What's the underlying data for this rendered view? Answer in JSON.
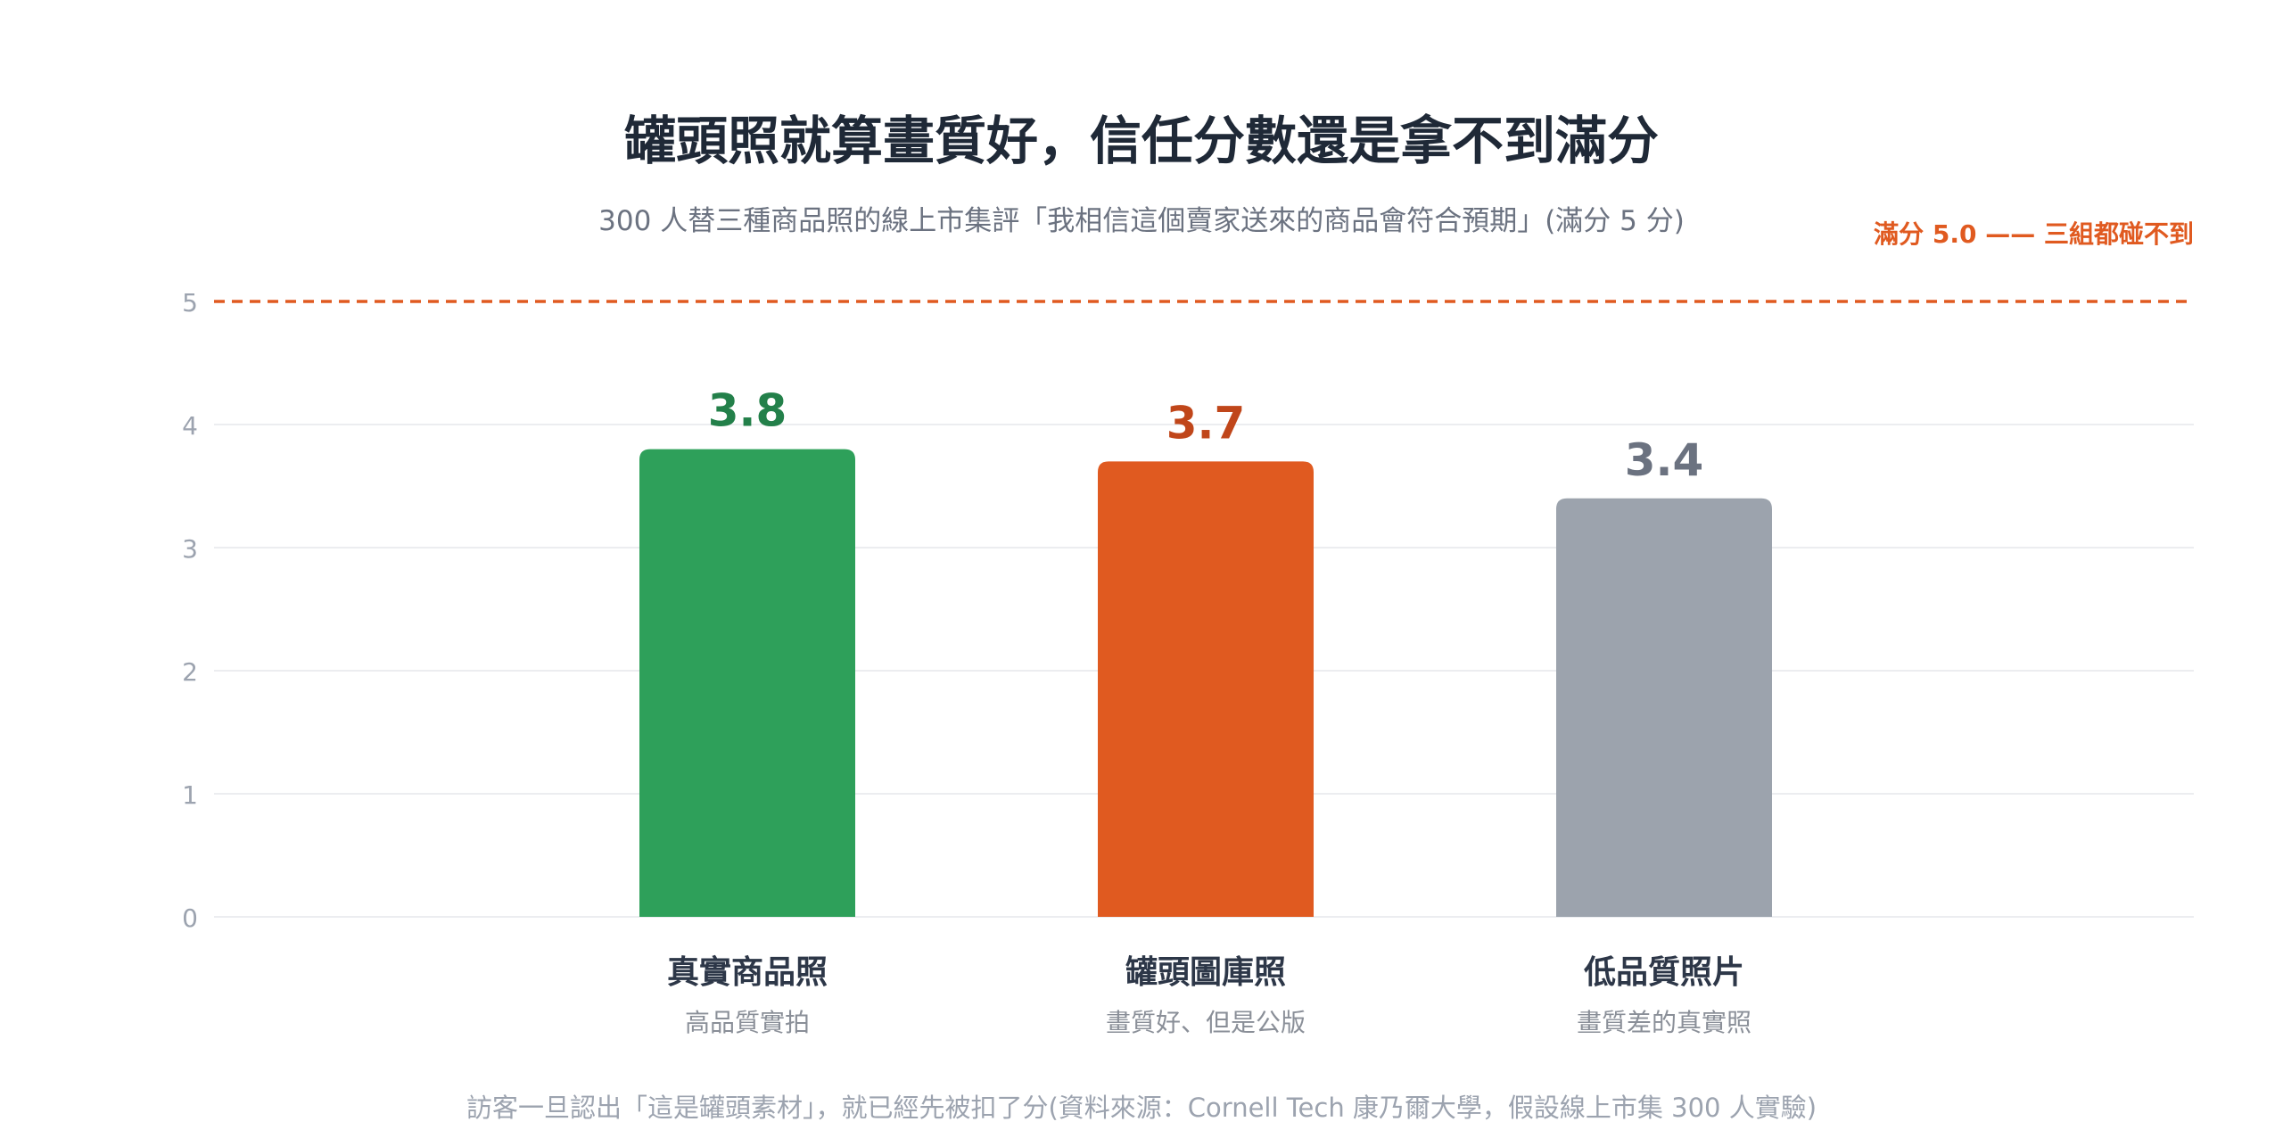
{
  "chart_data": {
    "type": "bar",
    "title": "罐頭照就算畫質好，信任分數還是拿不到滿分",
    "subtitle": "300 人替三種商品照的線上市集評「我相信這個賣家送來的商品會符合預期」(滿分 5 分)",
    "reference_line": {
      "value": 5.0,
      "label": "滿分 5.0 —— 三組都碰不到"
    },
    "ylim": [
      0,
      5
    ],
    "yticks": [
      0,
      1,
      2,
      3,
      4,
      5
    ],
    "grid": true,
    "categories": [
      "真實商品照",
      "罐頭圖庫照",
      "低品質照片"
    ],
    "category_sublabels": [
      "高品質實拍",
      "畫質好、但是公版",
      "畫質差的真實照"
    ],
    "values": [
      3.8,
      3.7,
      3.4
    ],
    "value_labels": [
      "3.8",
      "3.7",
      "3.4"
    ],
    "colors": {
      "bars": [
        "#2ea05a",
        "#e05a20",
        "#9ca3ad"
      ],
      "value_labels": [
        "#23804a",
        "#c0461a",
        "#6b7280"
      ],
      "reference": "#e05a20",
      "title": "#1f2937",
      "subtitle": "#6b7280",
      "category": "#2d3748",
      "sublabel": "#8a8f98",
      "tick": "#9ca3af",
      "grid": "#e5e7eb",
      "footnote": "#9ca3af"
    },
    "footnote": "訪客一旦認出「這是罐頭素材」，就已經先被扣了分(資料來源：Cornell Tech 康乃爾大學，假設線上市集 300 人實驗)"
  }
}
